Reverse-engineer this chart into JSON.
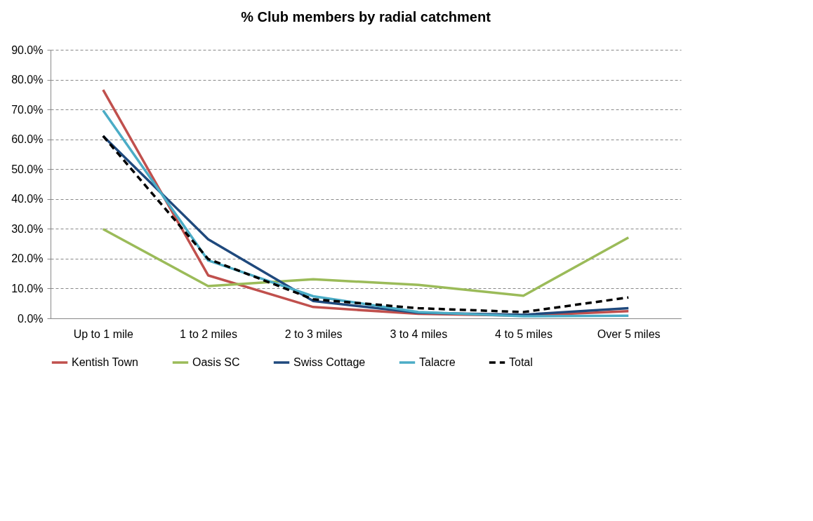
{
  "chart_data": {
    "type": "line",
    "title": "% Club members by radial catchment",
    "categories": [
      "Up to 1 mile",
      "1 to 2 miles",
      "2 to 3 miles",
      "3 to 4 miles",
      "4 to 5 miles",
      "Over 5 miles"
    ],
    "series": [
      {
        "name": "Kentish Town",
        "color": "#c0504d",
        "values": [
          76.6,
          14.4,
          3.8,
          1.5,
          0.9,
          2.4
        ]
      },
      {
        "name": "Oasis SC",
        "color": "#9bbb59",
        "values": [
          29.9,
          10.8,
          13.1,
          11.2,
          7.6,
          27.1
        ]
      },
      {
        "name": "Swiss Cottage",
        "color": "#1f497d",
        "values": [
          61.1,
          26.5,
          5.8,
          1.9,
          1.2,
          3.4
        ]
      },
      {
        "name": "Talacre",
        "color": "#4bacc6",
        "values": [
          69.7,
          19.4,
          7.4,
          2.1,
          0.7,
          0.9
        ]
      },
      {
        "name": "Total",
        "color": "#000000",
        "line_style": "dashed",
        "values": [
          61.1,
          19.9,
          6.4,
          3.4,
          2.1,
          7.0
        ]
      }
    ],
    "ylim": [
      0,
      90
    ],
    "yticks": [
      {
        "value": 0,
        "label": "0.0%"
      },
      {
        "value": 10,
        "label": "10.0%"
      },
      {
        "value": 20,
        "label": "20.0%"
      },
      {
        "value": 30,
        "label": "30.0%"
      },
      {
        "value": 40,
        "label": "40.0%"
      },
      {
        "value": 50,
        "label": "50.0%"
      },
      {
        "value": 60,
        "label": "60.0%"
      },
      {
        "value": 70,
        "label": "70.0%"
      },
      {
        "value": 80,
        "label": "80.0%"
      },
      {
        "value": 90,
        "label": "90.0%"
      }
    ],
    "grid": "y",
    "legend": "bottom",
    "marker": "none"
  }
}
